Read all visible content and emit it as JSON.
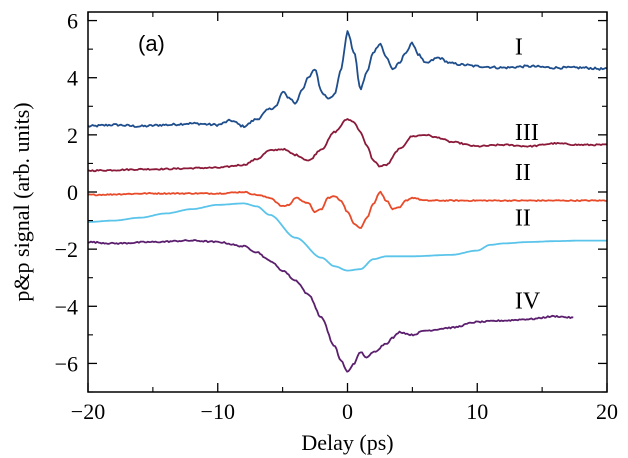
{
  "chart_data": {
    "type": "line",
    "panel_label": "(a)",
    "xlabel": "Delay (ps)",
    "ylabel": "p&p signal (arb. units)",
    "xlim": [
      -20,
      20
    ],
    "ylim": [
      -7,
      6.3
    ],
    "xticks": [
      -20,
      -10,
      0,
      10,
      20
    ],
    "xtick_labels": [
      "−20",
      "−10",
      "0",
      "10",
      "20"
    ],
    "yticks": [
      6,
      4,
      2,
      0,
      -2,
      -4,
      -6
    ],
    "ytick_labels": [
      "6",
      "4",
      "2",
      "0",
      "−2",
      "−4",
      "−6"
    ],
    "grid": false,
    "series_labels": [
      {
        "text": "I",
        "x": 12.9,
        "y": 5.1
      },
      {
        "text": "III",
        "x": 12.9,
        "y": 2.1
      },
      {
        "text": "II",
        "x": 12.9,
        "y": 0.7
      },
      {
        "text": "II",
        "x": 12.9,
        "y": -0.9
      },
      {
        "text": "IV",
        "x": 12.9,
        "y": -3.8
      }
    ],
    "series": [
      {
        "color": "#1f4e8c",
        "noise": 0.08,
        "x": [
          -20,
          -18,
          -16,
          -14,
          -12,
          -10,
          -9,
          -8,
          -7,
          -6,
          -5.5,
          -5,
          -4.5,
          -4,
          -3.5,
          -3,
          -2.5,
          -2,
          -1.5,
          -1,
          -0.5,
          0,
          0.5,
          1,
          1.5,
          2,
          2.5,
          3,
          3.5,
          4,
          4.5,
          5,
          5.5,
          6,
          7,
          8,
          9,
          10,
          12,
          14,
          16,
          18,
          20
        ],
        "y": [
          2.3,
          2.35,
          2.3,
          2.35,
          2.4,
          2.35,
          2.5,
          2.3,
          2.55,
          2.9,
          3.0,
          3.5,
          3.3,
          3.1,
          3.6,
          4.0,
          4.3,
          3.5,
          3.3,
          3.4,
          4.3,
          5.6,
          4.9,
          3.6,
          4.2,
          4.9,
          5.2,
          4.7,
          4.3,
          4.5,
          4.9,
          5.2,
          4.8,
          4.5,
          4.7,
          4.5,
          4.45,
          4.4,
          4.35,
          4.4,
          4.35,
          4.35,
          4.3
        ]
      },
      {
        "color": "#8b1a3a",
        "noise": 0.05,
        "x": [
          -20,
          -15,
          -10,
          -8,
          -7,
          -6,
          -5,
          -4,
          -3,
          -2,
          -1,
          0,
          0.5,
          1,
          1.5,
          2,
          2.5,
          3,
          4,
          5,
          6,
          7,
          8,
          10,
          12,
          14,
          16,
          18,
          20
        ],
        "y": [
          0.75,
          0.8,
          0.85,
          0.95,
          1.15,
          1.45,
          1.5,
          1.3,
          1.1,
          1.5,
          2.1,
          2.55,
          2.45,
          2.1,
          1.6,
          1.1,
          0.9,
          0.95,
          1.5,
          1.95,
          2.0,
          1.9,
          1.75,
          1.6,
          1.65,
          1.6,
          1.7,
          1.65,
          1.65
        ]
      },
      {
        "color": "#e84b2a",
        "noise": 0.04,
        "x": [
          -20,
          -15,
          -10,
          -8,
          -7,
          -6,
          -5,
          -4.5,
          -4,
          -3,
          -2.5,
          -2,
          -1.5,
          -1,
          -0.5,
          0,
          0.5,
          1,
          1.5,
          2,
          2.5,
          3,
          3.5,
          4,
          4.5,
          5,
          6,
          8,
          10,
          12,
          14,
          16,
          18,
          20
        ],
        "y": [
          -0.1,
          -0.05,
          -0.05,
          0.0,
          -0.1,
          -0.2,
          -0.5,
          -0.45,
          -0.2,
          -0.4,
          -0.7,
          -0.6,
          -0.2,
          -0.15,
          -0.3,
          -0.7,
          -1.1,
          -1.25,
          -0.9,
          -0.4,
          0.0,
          -0.3,
          -0.6,
          -0.55,
          -0.3,
          -0.2,
          -0.3,
          -0.3,
          -0.3,
          -0.3,
          -0.3,
          -0.3,
          -0.3,
          -0.3
        ]
      },
      {
        "color": "#5bc4ea",
        "noise": 0.0,
        "x": [
          -20,
          -18,
          -16,
          -14,
          -12,
          -10,
          -8,
          -7,
          -6,
          -4,
          -2,
          -1,
          0,
          1,
          2,
          3,
          5,
          8,
          10,
          11,
          12,
          14,
          16,
          18,
          20
        ],
        "y": [
          -1.05,
          -1.0,
          -0.9,
          -0.75,
          -0.6,
          -0.45,
          -0.4,
          -0.5,
          -0.8,
          -1.6,
          -2.3,
          -2.6,
          -2.75,
          -2.7,
          -2.35,
          -2.25,
          -2.25,
          -2.2,
          -2.05,
          -1.85,
          -1.8,
          -1.75,
          -1.72,
          -1.7,
          -1.7
        ]
      },
      {
        "color": "#5b1f6e",
        "noise": 0.05,
        "x": [
          -20,
          -18,
          -15,
          -12,
          -10,
          -8,
          -7,
          -6,
          -5,
          -4,
          -3,
          -2,
          -1,
          -0.5,
          0,
          0.5,
          1,
          1.5,
          2,
          3,
          3.5,
          4,
          5,
          6,
          8,
          10,
          12,
          14,
          16,
          17.4
        ],
        "y": [
          -1.75,
          -1.8,
          -1.75,
          -1.7,
          -1.75,
          -1.9,
          -2.1,
          -2.4,
          -2.75,
          -3.1,
          -3.6,
          -4.4,
          -5.4,
          -5.9,
          -6.3,
          -6.0,
          -5.6,
          -5.8,
          -5.6,
          -5.3,
          -5.1,
          -4.9,
          -5.0,
          -4.85,
          -4.75,
          -4.55,
          -4.5,
          -4.45,
          -4.35,
          -4.4
        ]
      }
    ]
  }
}
